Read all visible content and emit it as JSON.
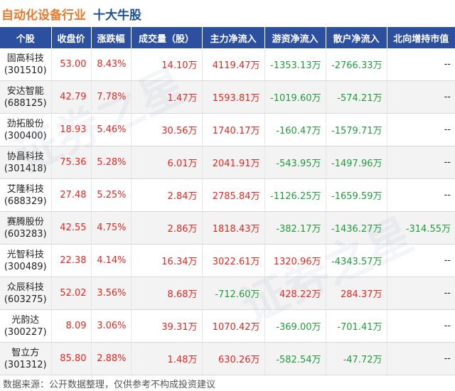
{
  "title": {
    "main": "自动化设备行业",
    "sub": "十大牛股"
  },
  "headers": [
    "个股",
    "收盘价",
    "涨跌幅",
    "成交量（股）",
    "主力净流入",
    "游资净流入",
    "散户净流入",
    "北向增持市值"
  ],
  "rows": [
    {
      "name": "固高科技",
      "code": "(301510)",
      "close": "53.00",
      "change": "8.43%",
      "volume": "14.10万",
      "main_flow": "4119.47万",
      "hot_flow": "-1353.13万",
      "retail_flow": "-2766.33万",
      "north": "--"
    },
    {
      "name": "安达智能",
      "code": "(688125)",
      "close": "42.79",
      "change": "7.78%",
      "volume": "1.47万",
      "main_flow": "1593.81万",
      "hot_flow": "-1019.60万",
      "retail_flow": "-574.21万",
      "north": "--"
    },
    {
      "name": "劲拓股份",
      "code": "(300400)",
      "close": "18.93",
      "change": "5.46%",
      "volume": "30.56万",
      "main_flow": "1740.17万",
      "hot_flow": "-160.47万",
      "retail_flow": "-1579.71万",
      "north": "--"
    },
    {
      "name": "协昌科技",
      "code": "(301418)",
      "close": "75.36",
      "change": "5.28%",
      "volume": "6.01万",
      "main_flow": "2041.91万",
      "hot_flow": "-543.95万",
      "retail_flow": "-1497.96万",
      "north": "--"
    },
    {
      "name": "艾隆科技",
      "code": "(688329)",
      "close": "27.48",
      "change": "5.25%",
      "volume": "2.84万",
      "main_flow": "2785.84万",
      "hot_flow": "-1126.25万",
      "retail_flow": "-1659.59万",
      "north": "--"
    },
    {
      "name": "赛腾股份",
      "code": "(603283)",
      "close": "42.55",
      "change": "4.75%",
      "volume": "2.86万",
      "main_flow": "1818.43万",
      "hot_flow": "-382.17万",
      "retail_flow": "-1436.27万",
      "north": "-314.55万"
    },
    {
      "name": "光智科技",
      "code": "(300489)",
      "close": "22.38",
      "change": "4.14%",
      "volume": "16.34万",
      "main_flow": "3022.61万",
      "hot_flow": "1320.96万",
      "retail_flow": "-4343.57万",
      "north": "--"
    },
    {
      "name": "众辰科技",
      "code": "(603275)",
      "close": "52.02",
      "change": "3.56%",
      "volume": "8.68万",
      "main_flow": "-712.60万",
      "hot_flow": "428.22万",
      "retail_flow": "284.37万",
      "north": "--"
    },
    {
      "name": "光韵达",
      "code": "(300227)",
      "close": "8.09",
      "change": "3.06%",
      "volume": "39.31万",
      "main_flow": "1070.42万",
      "hot_flow": "-369.00万",
      "retail_flow": "-701.41万",
      "north": "--"
    },
    {
      "name": "智立方",
      "code": "(301312)",
      "close": "85.80",
      "change": "2.88%",
      "volume": "1.48万",
      "main_flow": "630.26万",
      "hot_flow": "-582.54万",
      "retail_flow": "-47.72万",
      "north": "--"
    }
  ],
  "footer": "数据来源：公开数据整理，仅供参考不构成投资建议",
  "watermark": "证券之星",
  "colors": {
    "header_bg": "#2d4fa0",
    "title_orange": "#e8792c",
    "title_blue": "#1e4f9e",
    "up_red": "#e6261f",
    "down_green": "#1f9c3a"
  }
}
